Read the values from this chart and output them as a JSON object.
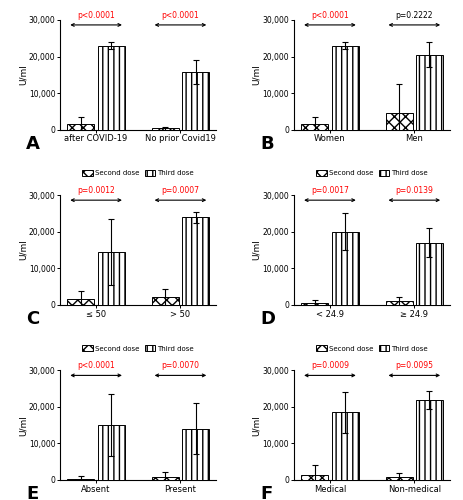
{
  "panels": [
    {
      "label": "A",
      "groups": [
        "after COVID-19",
        "No prior Covid19"
      ],
      "second_dose": [
        1500,
        350
      ],
      "second_dose_err": [
        2000,
        400
      ],
      "third_dose": [
        23000,
        15800
      ],
      "third_dose_err": [
        900,
        3200
      ],
      "pvalues": [
        "p<0.0001",
        "p<0.0001"
      ],
      "pvalue_colors": [
        "red",
        "red"
      ],
      "ylim": [
        0,
        30000
      ],
      "yticks": [
        0,
        10000,
        20000,
        30000
      ],
      "ylabel": "U/ml"
    },
    {
      "label": "B",
      "groups": [
        "Women",
        "Men"
      ],
      "second_dose": [
        1500,
        4500
      ],
      "second_dose_err": [
        2000,
        8000
      ],
      "third_dose": [
        23000,
        20500
      ],
      "third_dose_err": [
        900,
        3500
      ],
      "pvalues": [
        "p<0.0001",
        "p=0.2222"
      ],
      "pvalue_colors": [
        "red",
        "black"
      ],
      "ylim": [
        0,
        30000
      ],
      "yticks": [
        0,
        10000,
        20000,
        30000
      ],
      "ylabel": "U/ml"
    },
    {
      "label": "C",
      "groups": [
        "≤ 50",
        "> 50"
      ],
      "second_dose": [
        1500,
        2000
      ],
      "second_dose_err": [
        2200,
        2200
      ],
      "third_dose": [
        14500,
        24000
      ],
      "third_dose_err": [
        9000,
        1500
      ],
      "pvalues": [
        "p=0.0012",
        "p=0.0007"
      ],
      "pvalue_colors": [
        "red",
        "red"
      ],
      "ylim": [
        0,
        30000
      ],
      "yticks": [
        0,
        10000,
        20000,
        30000
      ],
      "ylabel": "U/ml"
    },
    {
      "label": "D",
      "groups": [
        "< 24.9",
        "≥ 24.9"
      ],
      "second_dose": [
        400,
        900
      ],
      "second_dose_err": [
        800,
        1200
      ],
      "third_dose": [
        20000,
        17000
      ],
      "third_dose_err": [
        5000,
        4000
      ],
      "pvalues": [
        "p=0.0017",
        "p=0.0139"
      ],
      "pvalue_colors": [
        "red",
        "red"
      ],
      "ylim": [
        0,
        30000
      ],
      "yticks": [
        0,
        10000,
        20000,
        30000
      ],
      "ylabel": "U/ml"
    },
    {
      "label": "E",
      "groups": [
        "Absent",
        "Present"
      ],
      "second_dose": [
        400,
        900
      ],
      "second_dose_err": [
        700,
        1200
      ],
      "third_dose": [
        15000,
        14000
      ],
      "third_dose_err": [
        8500,
        7000
      ],
      "pvalues": [
        "p<0.0001",
        "p=0.0070"
      ],
      "pvalue_colors": [
        "red",
        "red"
      ],
      "ylim": [
        0,
        30000
      ],
      "yticks": [
        0,
        10000,
        20000,
        30000
      ],
      "ylabel": "U/ml"
    },
    {
      "label": "F",
      "groups": [
        "Medical",
        "Non-medical"
      ],
      "second_dose": [
        1500,
        800
      ],
      "second_dose_err": [
        2500,
        1000
      ],
      "third_dose": [
        18500,
        22000
      ],
      "third_dose_err": [
        5500,
        2500
      ],
      "pvalues": [
        "p=0.0009",
        "p=0.0095"
      ],
      "pvalue_colors": [
        "red",
        "red"
      ],
      "ylim": [
        0,
        30000
      ],
      "yticks": [
        0,
        10000,
        20000,
        30000
      ],
      "ylabel": "U/ml"
    }
  ],
  "second_dose_hatch": "xxx",
  "third_dose_hatch": "|||",
  "bar_width": 0.32,
  "bar_color": "white",
  "bar_edgecolor": "black",
  "legend_labels": [
    "Second dose",
    "Third dose"
  ],
  "background_color": "white",
  "ytick_labels": [
    "0",
    "10,000",
    "20,000",
    "30,000"
  ]
}
